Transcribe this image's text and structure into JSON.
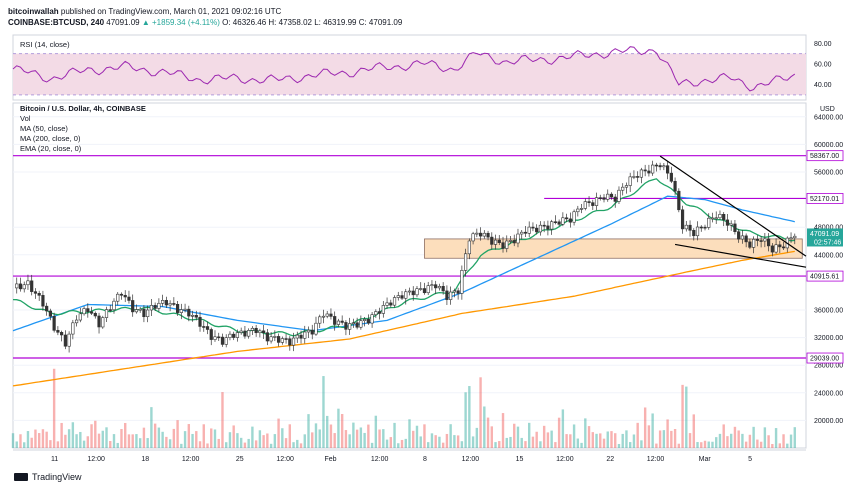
{
  "header": {
    "publisher": "bitcoinwallah",
    "published_text": "published on TradingView.com, March 01, 2021 09:02:16 UTC",
    "symbol": "COINBASE:BTCUSD, 240",
    "last": "47091.09",
    "change": "▲ +1859.34 (+4.11%)",
    "ohlc": "O: 46326.46 H: 47358.02 L: 46319.99 C: 47091.09"
  },
  "rsi_pane": {
    "label": "RSI (14, close)",
    "ticks": [
      "80.00",
      "60.00",
      "40.00"
    ]
  },
  "price_pane": {
    "title": "Bitcoin / U.S. Dollar, 4h, COINBASE",
    "indicators": [
      "Vol",
      "MA (50, close)",
      "MA (200, close, 0)",
      "EMA (20, close, 0)"
    ],
    "currency": "USD",
    "ticks": [
      "64000.00",
      "60000.00",
      "56000.00",
      "48000.00",
      "44000.00",
      "36000.00",
      "32000.00",
      "28000.00",
      "24000.00",
      "20000.00"
    ],
    "level_labels": [
      "58367.00",
      "52170.01",
      "40915.61",
      "29039.00"
    ],
    "price_tag": "47091.09",
    "countdown": "02:57:46"
  },
  "x_axis": {
    "labels": [
      "11",
      "12:00",
      "18",
      "12:00",
      "25",
      "12:00",
      "Feb",
      "12:00",
      "8",
      "12:00",
      "15",
      "12:00",
      "22",
      "12:00",
      "Mar",
      "5"
    ]
  },
  "footer": {
    "brand": "TradingView"
  },
  "colors": {
    "rsi": "#9c27b0",
    "rsi_band": "#f3dbe6",
    "ma50": "#2196f3",
    "ma200": "#ff9800",
    "ema20": "#21a366",
    "level": "#b000d8",
    "up": "#26a69a",
    "down": "#ef5350",
    "zone": "#fbd8b0"
  },
  "chart_data": {
    "type": "candlestick",
    "title": "Bitcoin / U.S. Dollar, 4h, COINBASE",
    "horizontal_levels": [
      58367.0,
      52170.01,
      40915.61,
      29039.0
    ],
    "support_zone": [
      43500,
      46300
    ],
    "ylim": [
      16000,
      66000
    ],
    "close_path": [
      [
        0,
        39200
      ],
      [
        4,
        39800
      ],
      [
        8,
        37000
      ],
      [
        11,
        33500
      ],
      [
        14,
        31200
      ],
      [
        17,
        35000
      ],
      [
        20,
        36200
      ],
      [
        23,
        34000
      ],
      [
        26,
        36500
      ],
      [
        29,
        38600
      ],
      [
        32,
        36200
      ],
      [
        35,
        35500
      ],
      [
        38,
        36700
      ],
      [
        41,
        37200
      ],
      [
        44,
        36100
      ],
      [
        47,
        35600
      ],
      [
        50,
        34100
      ],
      [
        53,
        32200
      ],
      [
        56,
        31500
      ],
      [
        59,
        32500
      ],
      [
        62,
        32700
      ],
      [
        65,
        33200
      ],
      [
        68,
        32000
      ],
      [
        71,
        31800
      ],
      [
        74,
        31400
      ],
      [
        77,
        32400
      ],
      [
        80,
        33000
      ],
      [
        83,
        35600
      ],
      [
        86,
        34400
      ],
      [
        89,
        33700
      ],
      [
        92,
        34000
      ],
      [
        95,
        34600
      ],
      [
        98,
        36000
      ],
      [
        101,
        37200
      ],
      [
        104,
        38200
      ],
      [
        107,
        38700
      ],
      [
        110,
        39000
      ],
      [
        113,
        39700
      ],
      [
        116,
        38000
      ],
      [
        119,
        38900
      ],
      [
        122,
        46500
      ],
      [
        125,
        47200
      ],
      [
        128,
        46000
      ],
      [
        131,
        45400
      ],
      [
        134,
        46200
      ],
      [
        137,
        47600
      ],
      [
        140,
        47800
      ],
      [
        143,
        48200
      ],
      [
        146,
        48900
      ],
      [
        149,
        49200
      ],
      [
        152,
        51200
      ],
      [
        155,
        51600
      ],
      [
        158,
        52500
      ],
      [
        161,
        52200
      ],
      [
        164,
        54500
      ],
      [
        167,
        55700
      ],
      [
        170,
        56300
      ],
      [
        173,
        57200
      ],
      [
        176,
        55100
      ],
      [
        179,
        48200
      ],
      [
        182,
        47200
      ],
      [
        185,
        48400
      ],
      [
        188,
        49800
      ],
      [
        191,
        48700
      ],
      [
        194,
        46700
      ],
      [
        197,
        45500
      ],
      [
        200,
        46400
      ],
      [
        203,
        44800
      ],
      [
        206,
        45400
      ],
      [
        209,
        47091
      ]
    ],
    "rsi": [
      [
        0,
        55
      ],
      [
        10,
        46
      ],
      [
        20,
        54
      ],
      [
        30,
        57
      ],
      [
        40,
        52
      ],
      [
        50,
        45
      ],
      [
        60,
        46
      ],
      [
        70,
        44
      ],
      [
        80,
        49
      ],
      [
        90,
        52
      ],
      [
        100,
        57
      ],
      [
        110,
        60
      ],
      [
        118,
        55
      ],
      [
        124,
        70
      ],
      [
        132,
        62
      ],
      [
        140,
        64
      ],
      [
        148,
        66
      ],
      [
        156,
        70
      ],
      [
        164,
        72
      ],
      [
        172,
        74
      ],
      [
        178,
        40
      ],
      [
        184,
        44
      ],
      [
        192,
        46
      ],
      [
        198,
        38
      ],
      [
        204,
        43
      ],
      [
        209,
        49
      ]
    ],
    "ma50": [
      [
        0,
        33000
      ],
      [
        20,
        36800
      ],
      [
        40,
        36500
      ],
      [
        60,
        34500
      ],
      [
        80,
        33000
      ],
      [
        100,
        34500
      ],
      [
        120,
        38500
      ],
      [
        140,
        43500
      ],
      [
        160,
        48500
      ],
      [
        175,
        52500
      ],
      [
        185,
        52000
      ],
      [
        195,
        50500
      ],
      [
        209,
        48800
      ]
    ],
    "ma200": [
      [
        0,
        25000
      ],
      [
        30,
        27500
      ],
      [
        60,
        30000
      ],
      [
        90,
        31800
      ],
      [
        120,
        35500
      ],
      [
        150,
        38000
      ],
      [
        180,
        41500
      ],
      [
        195,
        43200
      ],
      [
        209,
        44500
      ]
    ],
    "ema20": [
      [
        0,
        37500
      ],
      [
        10,
        35500
      ],
      [
        20,
        35800
      ],
      [
        35,
        36300
      ],
      [
        50,
        34500
      ],
      [
        60,
        33000
      ],
      [
        75,
        32500
      ],
      [
        90,
        33800
      ],
      [
        105,
        37200
      ],
      [
        118,
        38800
      ],
      [
        125,
        44000
      ],
      [
        140,
        47000
      ],
      [
        160,
        51000
      ],
      [
        172,
        55200
      ],
      [
        180,
        51500
      ],
      [
        188,
        49200
      ],
      [
        198,
        47000
      ],
      [
        209,
        46200
      ]
    ],
    "trendlines": [
      [
        [
          173,
          58300
        ],
        [
          212,
          43800
        ]
      ],
      [
        [
          177,
          45500
        ],
        [
          212,
          42200
        ]
      ]
    ],
    "x_tick_labels": [
      "11",
      "12:00",
      "18",
      "12:00",
      "25",
      "12:00",
      "Feb",
      "12:00",
      "8",
      "12:00",
      "15",
      "12:00",
      "22",
      "12:00",
      "Mar",
      "5"
    ]
  }
}
